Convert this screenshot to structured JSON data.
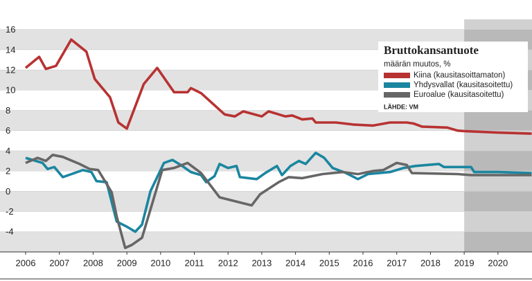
{
  "chart_data": {
    "type": "line",
    "title": "Bruttokansantuote",
    "subtitle": "määrän muutos, %",
    "source": "LÄHDE: VM",
    "xlim": [
      2005.24,
      2021.01
    ],
    "xticks": [
      2006,
      2007,
      2008,
      2009,
      2010,
      2011,
      2012,
      2013,
      2014,
      2015,
      2016,
      2017,
      2018,
      2019,
      2020
    ],
    "ylim": [
      -6,
      17
    ],
    "yticks": [
      -4,
      -2,
      0,
      2,
      4,
      6,
      8,
      10,
      12,
      14,
      16
    ],
    "grid": true,
    "forecast_start": 2019,
    "series": [
      {
        "name": "Kiina (kausitasoittamaton)",
        "color": "#b83232",
        "x": [
          2006.0,
          2006.4,
          2006.6,
          2006.9,
          2007.35,
          2007.8,
          2008.05,
          2008.5,
          2008.75,
          2009.0,
          2009.5,
          2009.9,
          2010.4,
          2010.8,
          2010.9,
          2011.2,
          2011.9,
          2012.2,
          2012.45,
          2013.0,
          2013.2,
          2013.7,
          2013.9,
          2014.2,
          2014.5,
          2014.6,
          2015.2,
          2015.7,
          2016.3,
          2016.8,
          2017.3,
          2017.5,
          2017.75,
          2018.5,
          2018.8,
          2019.0,
          2020.0,
          2021.0
        ],
        "values": [
          12.2,
          13.3,
          12.1,
          12.4,
          15.0,
          13.8,
          11.1,
          9.3,
          6.8,
          6.2,
          10.6,
          12.2,
          9.8,
          9.8,
          10.2,
          9.7,
          7.6,
          7.4,
          7.9,
          7.4,
          7.9,
          7.4,
          7.5,
          7.1,
          7.2,
          6.8,
          6.8,
          6.6,
          6.5,
          6.8,
          6.8,
          6.7,
          6.4,
          6.3,
          6.0,
          5.95,
          5.8,
          5.7
        ]
      },
      {
        "name": "Yhdysvallat (kausitasoitettu)",
        "color": "#1a86a0",
        "x": [
          2006.0,
          2006.5,
          2006.65,
          2006.85,
          2007.1,
          2007.7,
          2007.95,
          2008.1,
          2008.4,
          2008.7,
          2009.0,
          2009.25,
          2009.45,
          2009.7,
          2010.1,
          2010.35,
          2010.6,
          2010.9,
          2011.2,
          2011.35,
          2011.6,
          2011.75,
          2012.0,
          2012.25,
          2012.35,
          2012.85,
          2013.1,
          2013.45,
          2013.6,
          2013.85,
          2014.1,
          2014.3,
          2014.6,
          2014.85,
          2015.1,
          2015.5,
          2015.85,
          2016.15,
          2016.8,
          2017.2,
          2017.55,
          2018.25,
          2018.4,
          2019.2,
          2019.3,
          2020.0,
          2021.0
        ],
        "values": [
          3.3,
          2.8,
          2.2,
          2.4,
          1.4,
          2.1,
          1.9,
          1.0,
          0.9,
          -3.0,
          -3.5,
          -4.0,
          -3.3,
          0.0,
          2.8,
          3.1,
          2.6,
          1.9,
          1.6,
          0.9,
          1.5,
          2.7,
          2.3,
          2.5,
          1.4,
          1.2,
          1.8,
          2.5,
          1.6,
          2.5,
          3.0,
          2.7,
          3.8,
          3.3,
          2.3,
          1.8,
          1.2,
          1.7,
          1.9,
          2.3,
          2.5,
          2.7,
          2.4,
          2.4,
          1.9,
          1.9,
          1.8
        ]
      },
      {
        "name": "Euroalue (kausitasoitettu)",
        "color": "#666666",
        "x": [
          2006.0,
          2006.35,
          2006.6,
          2006.8,
          2007.1,
          2007.6,
          2007.9,
          2008.15,
          2008.35,
          2008.55,
          2008.7,
          2008.95,
          2009.15,
          2009.45,
          2010.05,
          2010.4,
          2010.8,
          2011.2,
          2011.75,
          2012.7,
          2012.95,
          2013.5,
          2013.8,
          2014.2,
          2014.8,
          2015.4,
          2015.85,
          2016.3,
          2016.6,
          2017.0,
          2017.3,
          2017.45,
          2018.8,
          2019.2,
          2020.0,
          2021.0
        ],
        "values": [
          2.8,
          3.3,
          3.0,
          3.6,
          3.4,
          2.7,
          2.2,
          2.1,
          1.0,
          -0.1,
          -2.5,
          -5.6,
          -5.3,
          -4.6,
          2.1,
          2.3,
          2.8,
          1.8,
          -0.6,
          -1.4,
          -0.3,
          0.9,
          1.4,
          1.3,
          1.7,
          1.9,
          1.7,
          2.0,
          2.1,
          2.8,
          2.6,
          1.8,
          1.7,
          1.6,
          1.6,
          1.6
        ]
      }
    ]
  }
}
